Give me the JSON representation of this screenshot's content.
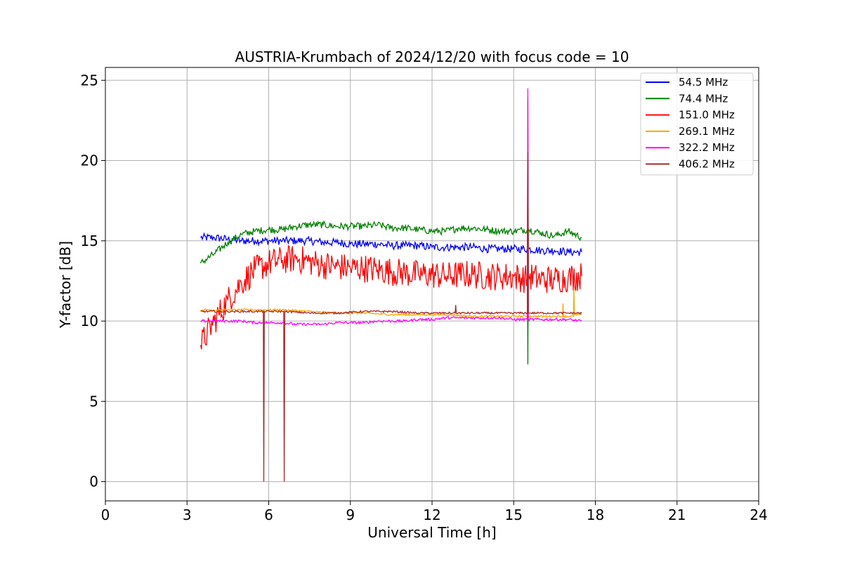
{
  "chart_data": {
    "type": "line",
    "title": "AUSTRIA-Krumbach of 2024/12/20 with focus code = 10",
    "xlabel": "Universal Time [h]",
    "ylabel": "Y-factor [dB]",
    "xlim": [
      0,
      24
    ],
    "ylim": [
      -1.2,
      25.8
    ],
    "xticks": [
      0,
      3,
      6,
      9,
      12,
      15,
      18,
      21,
      24
    ],
    "xtick_labels": [
      "0",
      "3",
      "6",
      "9",
      "12",
      "15",
      "18",
      "21",
      "24"
    ],
    "yticks": [
      0,
      5,
      10,
      15,
      20,
      25
    ],
    "ytick_labels": [
      "0",
      "5",
      "10",
      "15",
      "20",
      "25"
    ],
    "grid": true,
    "legend_position": "top-right",
    "series": [
      {
        "name": " 54.5 MHz",
        "color": "#0000ff",
        "x": [
          3.5,
          4.0,
          4.5,
          5.0,
          5.5,
          6.0,
          6.5,
          7.0,
          7.5,
          8.0,
          8.5,
          9.0,
          9.5,
          10.0,
          10.5,
          11.0,
          11.5,
          12.0,
          12.5,
          13.0,
          13.5,
          14.0,
          14.5,
          15.0,
          15.5,
          16.0,
          16.5,
          17.0,
          17.5
        ],
        "y": [
          15.2,
          15.2,
          15.1,
          15.0,
          15.0,
          15.0,
          15.0,
          15.0,
          15.0,
          14.9,
          14.9,
          14.8,
          14.8,
          14.8,
          14.7,
          14.7,
          14.7,
          14.6,
          14.6,
          14.6,
          14.6,
          14.5,
          14.5,
          14.5,
          14.5,
          14.4,
          14.4,
          14.3,
          14.3
        ],
        "noise": 0.25
      },
      {
        "name": " 74.4 MHz",
        "color": "#008000",
        "x": [
          3.5,
          4.0,
          4.5,
          5.0,
          5.5,
          6.0,
          6.5,
          7.0,
          7.5,
          8.0,
          8.5,
          9.0,
          9.5,
          10.0,
          10.5,
          11.0,
          11.5,
          12.0,
          12.5,
          13.0,
          13.5,
          14.0,
          14.5,
          15.0,
          15.5,
          15.52,
          15.54,
          16.0,
          16.5,
          17.0,
          17.5
        ],
        "y": [
          13.6,
          14.2,
          14.9,
          15.4,
          15.6,
          15.7,
          15.7,
          15.9,
          16.0,
          16.0,
          15.9,
          15.9,
          15.9,
          16.0,
          15.8,
          15.8,
          15.7,
          15.6,
          15.6,
          15.8,
          15.8,
          15.7,
          15.6,
          15.6,
          15.7,
          7.3,
          15.7,
          15.5,
          15.3,
          15.6,
          15.2
        ],
        "noise": 0.22
      },
      {
        "name": " 151.0 MHz",
        "color": "#ff0000",
        "x": [
          3.5,
          4.0,
          4.5,
          5.0,
          5.5,
          6.0,
          6.5,
          7.0,
          7.5,
          8.0,
          8.5,
          9.0,
          9.5,
          10.0,
          10.5,
          11.0,
          11.5,
          12.0,
          12.5,
          13.0,
          13.5,
          14.0,
          14.5,
          15.0,
          15.5,
          15.52,
          15.54,
          16.0,
          16.5,
          17.0,
          17.5
        ],
        "y": [
          8.5,
          10.0,
          11.3,
          12.4,
          13.2,
          13.6,
          13.8,
          13.9,
          13.7,
          13.5,
          13.4,
          13.3,
          13.3,
          13.2,
          13.1,
          13.0,
          12.9,
          12.9,
          12.8,
          12.9,
          12.9,
          12.8,
          12.8,
          12.8,
          12.6,
          23.8,
          12.8,
          12.6,
          12.6,
          12.7,
          12.8
        ],
        "noise": 0.9
      },
      {
        "name": " 269.1 MHz",
        "color": "#ffa500",
        "x": [
          3.5,
          4.5,
          5.5,
          6.5,
          7.5,
          8.5,
          9.5,
          10.5,
          11.5,
          12.5,
          13.5,
          14.5,
          15.5,
          16.5,
          16.8,
          16.81,
          16.83,
          17.2,
          17.21,
          17.23,
          17.5
        ],
        "y": [
          10.7,
          10.7,
          10.7,
          10.7,
          10.6,
          10.5,
          10.5,
          10.4,
          10.4,
          10.4,
          10.3,
          10.3,
          10.3,
          10.3,
          10.3,
          11.1,
          10.3,
          10.3,
          12.1,
          10.4,
          10.4
        ],
        "noise": 0.06
      },
      {
        "name": " 322.2 MHz",
        "color": "#ff00ff",
        "x": [
          3.5,
          4.0,
          4.5,
          5.0,
          5.5,
          6.0,
          6.5,
          7.0,
          7.5,
          8.0,
          8.5,
          9.0,
          9.5,
          10.0,
          10.5,
          11.0,
          11.5,
          12.0,
          12.5,
          13.0,
          13.5,
          14.0,
          14.5,
          15.0,
          15.5,
          15.52,
          15.54,
          16.0,
          16.5,
          17.0,
          17.5
        ],
        "y": [
          10.0,
          10.0,
          10.0,
          10.0,
          9.9,
          9.9,
          9.9,
          9.8,
          9.8,
          9.8,
          9.9,
          9.9,
          9.9,
          10.0,
          10.0,
          10.0,
          10.1,
          10.1,
          10.2,
          10.2,
          10.2,
          10.2,
          10.2,
          10.1,
          10.1,
          24.5,
          10.1,
          10.1,
          10.1,
          10.1,
          10.0
        ],
        "noise": 0.08
      },
      {
        "name": " 406.2 MHz",
        "color": "#a52a2a",
        "x": [
          3.5,
          4.5,
          5.5,
          5.8,
          5.82,
          5.84,
          6.5,
          6.55,
          6.57,
          6.59,
          7.5,
          8.5,
          9.5,
          10.5,
          11.5,
          12.5,
          12.85,
          12.87,
          12.89,
          13.5,
          14.5,
          15.0,
          15.5,
          15.52,
          15.54,
          16.5,
          17.5
        ],
        "y": [
          10.6,
          10.6,
          10.6,
          10.6,
          0.0,
          10.6,
          10.6,
          10.6,
          0.0,
          10.6,
          10.5,
          10.5,
          10.6,
          10.6,
          10.5,
          10.5,
          10.5,
          11.0,
          10.5,
          10.5,
          10.5,
          10.5,
          10.5,
          20.5,
          10.5,
          10.5,
          10.5
        ],
        "noise": 0.06
      }
    ]
  }
}
